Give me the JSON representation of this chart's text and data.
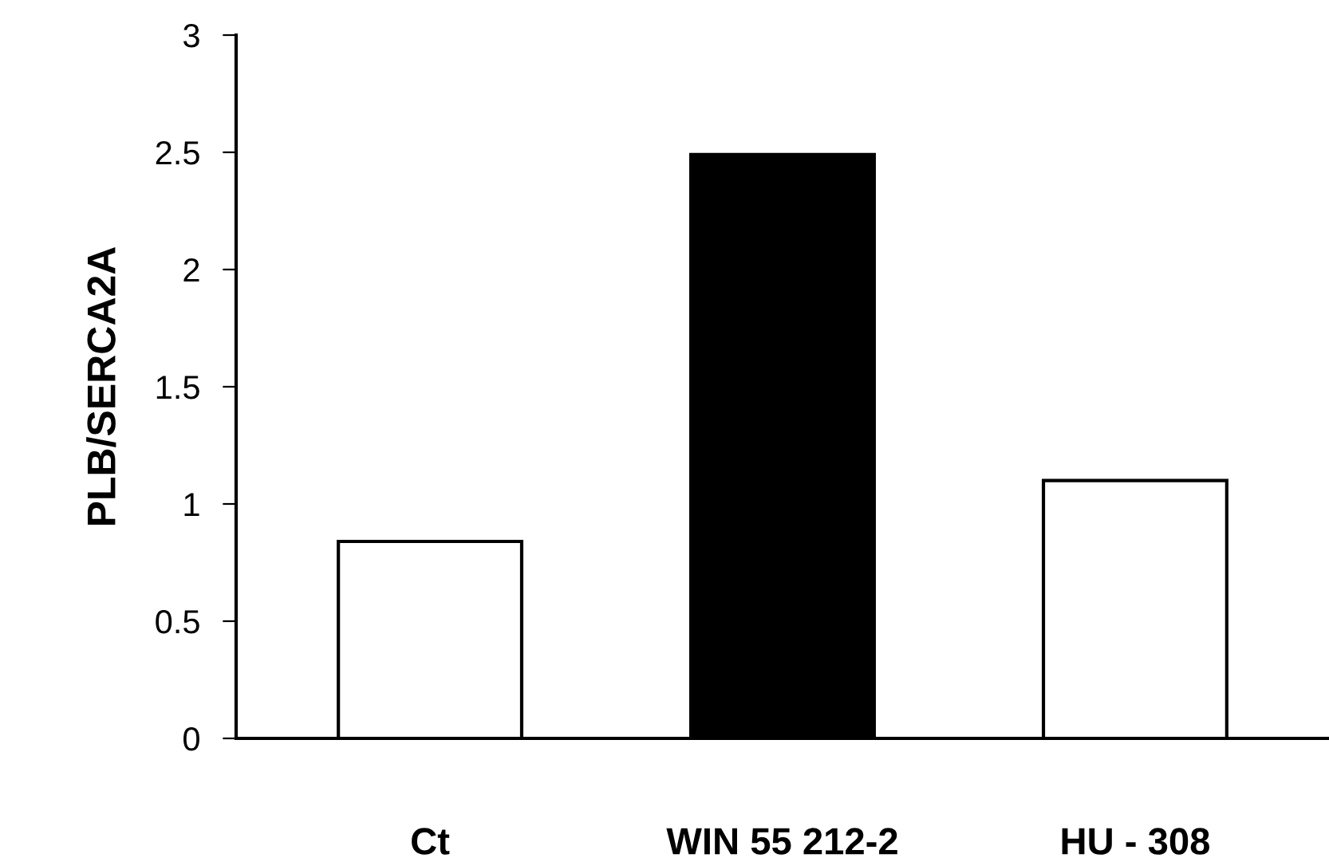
{
  "chart_data": {
    "type": "bar",
    "ylabel": "PLB/SERCA2A",
    "categories": [
      "Ct",
      "WIN 55 212-2",
      "HU - 308"
    ],
    "values": [
      0.84,
      2.49,
      1.1
    ],
    "colors": [
      "#ffffff",
      "#000000",
      "#ffffff"
    ],
    "ylim": [
      0,
      3
    ],
    "yticks": [
      0,
      0.5,
      1,
      1.5,
      2,
      2.5,
      3
    ],
    "grid": false,
    "legend": false
  }
}
